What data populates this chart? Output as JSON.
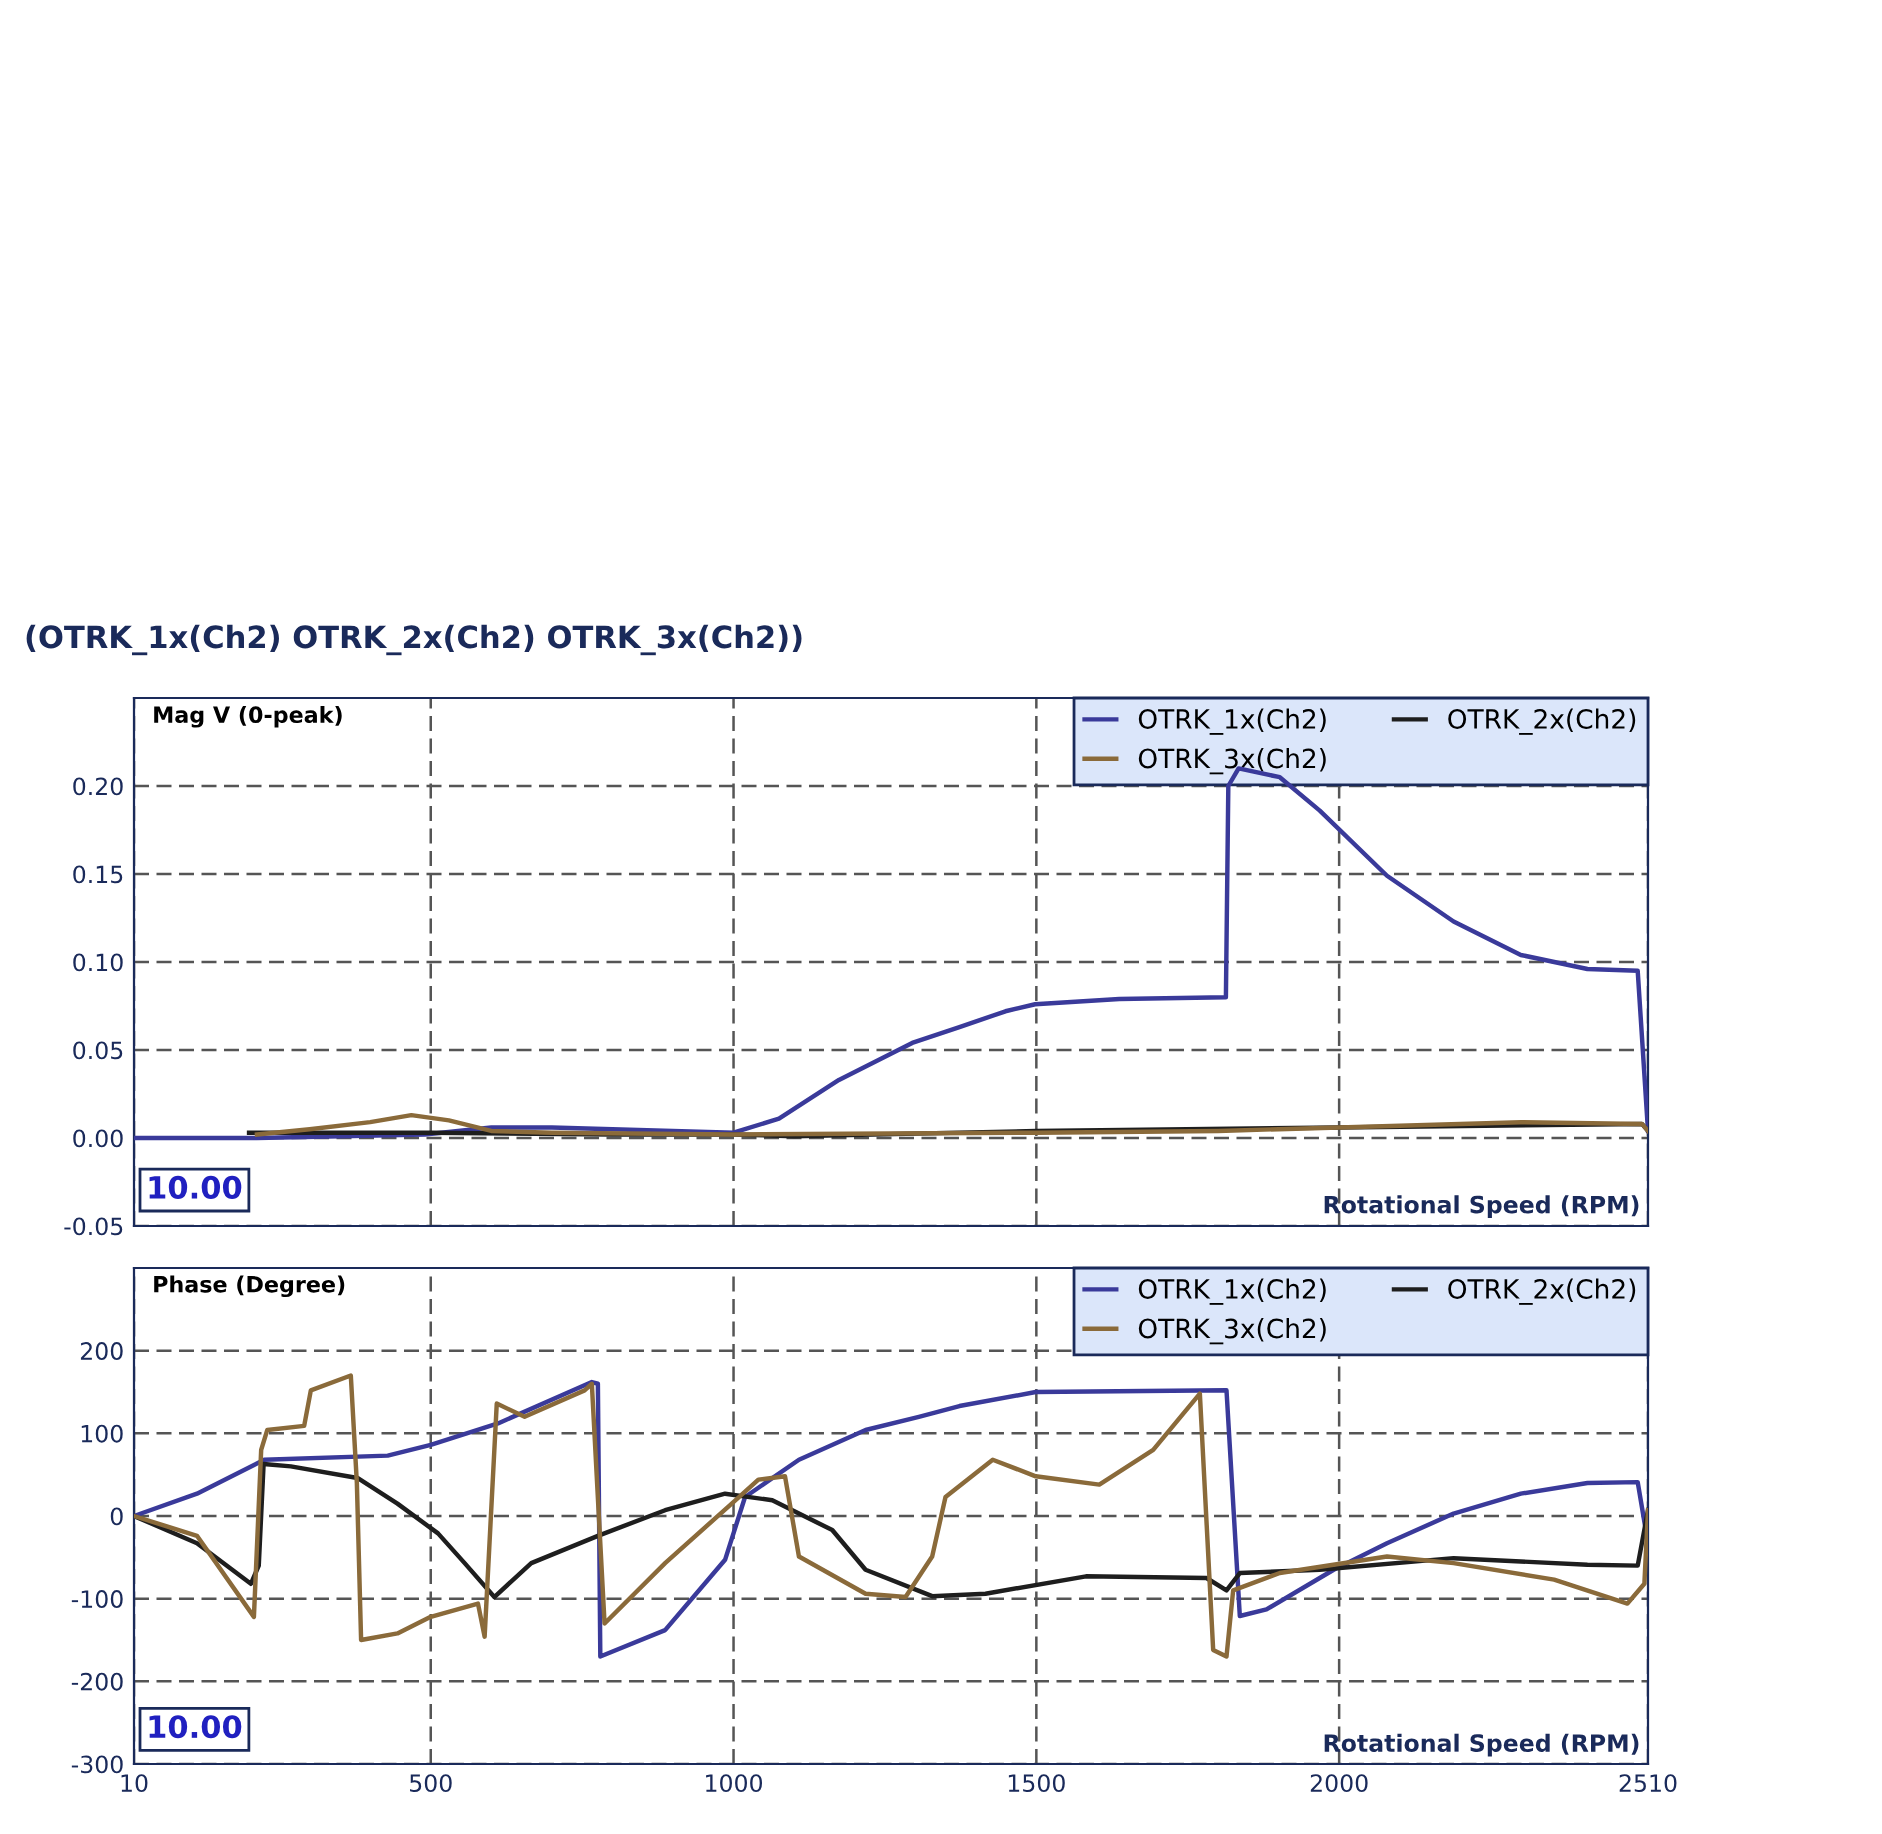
{
  "chart_data": [
    {
      "type": "line",
      "title": "(OTRK_1x(Ch2) OTRK_2x(Ch2) OTRK_3x(Ch2))",
      "ylabel": "Mag V (0-peak)",
      "xlabel": "Rotational Speed (RPM)",
      "annotations": [
        "10.00"
      ],
      "xlim": [
        10,
        2510
      ],
      "xticks": [
        10,
        500,
        1000,
        1500,
        2000,
        2510
      ],
      "ylim": [
        -0.05,
        0.25
      ],
      "yticks": [
        {
          "value": -0.05,
          "label": "-0.05"
        },
        {
          "value": 0,
          "label": "0.00"
        },
        {
          "value": 0.05,
          "label": "0.05"
        },
        {
          "value": 0.1,
          "label": "0.10"
        },
        {
          "value": 0.15,
          "label": "0.15"
        },
        {
          "value": 0.2,
          "label": "0.20"
        }
      ],
      "tick_labels": "y",
      "grid": true,
      "legend": "top right",
      "series": [
        {
          "name": "OTRK_1x(Ch2)",
          "color": "#3a3a9a",
          "x": [
            10,
            213,
            490,
            600,
            700,
            1000,
            1075,
            1174,
            1295,
            1373,
            1449,
            1498,
            1637,
            1813,
            1817,
            1834,
            1902,
            1968,
            2079,
            2189,
            2300,
            2410,
            2493,
            2510
          ],
          "values": [
            0,
            0,
            0.002,
            0.006,
            0.006,
            0.003,
            0.011,
            0.033,
            0.054,
            0.063,
            0.072,
            0.076,
            0.079,
            0.08,
            0.2,
            0.21,
            0.205,
            0.186,
            0.149,
            0.123,
            0.104,
            0.096,
            0.095,
            0.004
          ]
        },
        {
          "name": "OTRK_2x(Ch2)",
          "color": "#1e1e1e",
          "x": [
            200,
            500,
            800,
            1000,
            1100,
            1500,
            2000,
            2500,
            2510
          ],
          "values": [
            0.003,
            0.003,
            0.002,
            0.002,
            0.001,
            0.004,
            0.006,
            0.008,
            0.004
          ]
        },
        {
          "name": "OTRK_3x(Ch2)",
          "color": "#8a6a3a",
          "x": [
            213,
            300,
            400,
            468,
            530,
            600,
            700,
            1000,
            1500,
            1800,
            2000,
            2300,
            2500,
            2510
          ],
          "values": [
            0.002,
            0.005,
            0.009,
            0.013,
            0.01,
            0.004,
            0.003,
            0.002,
            0.003,
            0.004,
            0.006,
            0.009,
            0.008,
            0.004
          ]
        }
      ]
    },
    {
      "type": "line",
      "ylabel": "Phase (Degree)",
      "xlabel": "Rotational Speed (RPM)",
      "annotations": [
        "10.00"
      ],
      "xlim": [
        10,
        2510
      ],
      "xticks": [
        10,
        500,
        1000,
        1500,
        2000,
        2510
      ],
      "ylim": [
        -300,
        300
      ],
      "yticks": [
        -300,
        -200,
        -100,
        0,
        100,
        200
      ],
      "grid": true,
      "legend": "top right",
      "series": [
        {
          "name": "OTRK_1x(Ch2)",
          "color": "#3a3a9a",
          "x": [
            10,
            114,
            225,
            429,
            500,
            611,
            766,
            776,
            780,
            887,
            986,
            1019,
            1108,
            1218,
            1306,
            1373,
            1499,
            1814,
            1836,
            1880,
            1991,
            2079,
            2189,
            2300,
            2410,
            2493,
            2510
          ],
          "values": [
            0,
            27,
            68,
            73,
            86,
            112,
            162,
            160,
            -170,
            -138,
            -53,
            23,
            68,
            104,
            120,
            133,
            150,
            152,
            -121,
            -113,
            -65,
            -33,
            3,
            27,
            40,
            41,
            -33
          ]
        },
        {
          "name": "OTRK_2x(Ch2)",
          "color": "#1e1e1e",
          "x": [
            10,
            114,
            203,
            216,
            224,
            269,
            379,
            445,
            512,
            556,
            605,
            666,
            776,
            887,
            986,
            1064,
            1163,
            1218,
            1328,
            1416,
            1582,
            1781,
            1814,
            1836,
            1968,
            2189,
            2410,
            2493,
            2510
          ],
          "values": [
            0,
            -33,
            -82,
            -60,
            63,
            60,
            46,
            15,
            -21,
            -57,
            -98,
            -57,
            -24,
            7,
            27,
            19,
            -17,
            -65,
            -97,
            -94,
            -73,
            -75,
            -90,
            -69,
            -65,
            -51,
            -59,
            -60,
            7
          ]
        },
        {
          "name": "OTRK_3x(Ch2)",
          "color": "#8a6a3a",
          "x": [
            10,
            114,
            208,
            220,
            230,
            291,
            302,
            368,
            378,
            385,
            445,
            500,
            578,
            589,
            609,
            655,
            754,
            766,
            787,
            887,
            997,
            1041,
            1085,
            1108,
            1218,
            1284,
            1328,
            1350,
            1428,
            1499,
            1604,
            1693,
            1770,
            1792,
            1814,
            1825,
            1902,
            2079,
            2189,
            2355,
            2476,
            2504,
            2510
          ],
          "values": [
            0,
            -24,
            -122,
            80,
            104,
            109,
            152,
            170,
            40,
            -150,
            -142,
            -122,
            -106,
            -146,
            136,
            120,
            152,
            160,
            -130,
            -57,
            15,
            44,
            48,
            -49,
            -94,
            -98,
            -49,
            23,
            68,
            48,
            38,
            80,
            148,
            -162,
            -170,
            -90,
            -69,
            -49,
            -57,
            -77,
            -106,
            -82,
            7
          ]
        }
      ]
    }
  ]
}
